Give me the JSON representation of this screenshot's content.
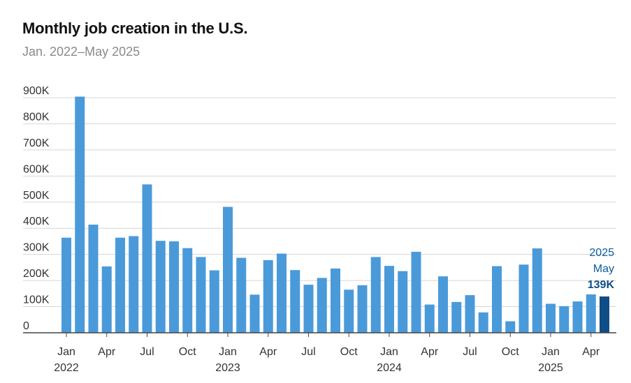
{
  "title": "Monthly job creation in the U.S.",
  "subtitle": "Jan. 2022–May 2025",
  "colors": {
    "bar": "#4a9ada",
    "highlight": "#0e4d86",
    "grid": "#d6d6d6",
    "axis": "#444444"
  },
  "chart_data": {
    "type": "bar",
    "title": "Monthly job creation in the U.S.",
    "subtitle": "Jan. 2022–May 2025",
    "xlabel": "",
    "ylabel": "",
    "ylim": [
      0,
      900000
    ],
    "grid": true,
    "y_ticks": [
      0,
      100000,
      200000,
      300000,
      400000,
      500000,
      600000,
      700000,
      800000,
      900000
    ],
    "y_tick_labels": [
      "0",
      "100K",
      "200K",
      "300K",
      "400K",
      "500K",
      "600K",
      "700K",
      "800K",
      "900K"
    ],
    "categories": [
      "Jan 2022",
      "Feb 2022",
      "Mar 2022",
      "Apr 2022",
      "May 2022",
      "Jun 2022",
      "Jul 2022",
      "Aug 2022",
      "Sep 2022",
      "Oct 2022",
      "Nov 2022",
      "Dec 2022",
      "Jan 2023",
      "Feb 2023",
      "Mar 2023",
      "Apr 2023",
      "May 2023",
      "Jun 2023",
      "Jul 2023",
      "Aug 2023",
      "Sep 2023",
      "Oct 2023",
      "Nov 2023",
      "Dec 2023",
      "Jan 2024",
      "Feb 2024",
      "Mar 2024",
      "Apr 2024",
      "May 2024",
      "Jun 2024",
      "Jul 2024",
      "Aug 2024",
      "Sep 2024",
      "Oct 2024",
      "Nov 2024",
      "Dec 2024",
      "Jan 2025",
      "Feb 2025",
      "Mar 2025",
      "Apr 2025",
      "May 2025"
    ],
    "values": [
      364000,
      904000,
      414000,
      254000,
      364000,
      370000,
      568000,
      352000,
      350000,
      324000,
      290000,
      239000,
      482000,
      287000,
      146000,
      278000,
      303000,
      240000,
      184000,
      210000,
      246000,
      165000,
      182000,
      290000,
      256000,
      236000,
      310000,
      108000,
      216000,
      118000,
      144000,
      78000,
      255000,
      44000,
      261000,
      323000,
      111000,
      102000,
      120000,
      147000,
      139000
    ],
    "highlight_index": 40,
    "x_tick_labels": [
      {
        "index": 0,
        "month": "Jan",
        "year": "2022"
      },
      {
        "index": 3,
        "month": "Apr",
        "year": ""
      },
      {
        "index": 6,
        "month": "Jul",
        "year": ""
      },
      {
        "index": 9,
        "month": "Oct",
        "year": ""
      },
      {
        "index": 12,
        "month": "Jan",
        "year": "2023"
      },
      {
        "index": 15,
        "month": "Apr",
        "year": ""
      },
      {
        "index": 18,
        "month": "Jul",
        "year": ""
      },
      {
        "index": 21,
        "month": "Oct",
        "year": ""
      },
      {
        "index": 24,
        "month": "Jan",
        "year": "2024"
      },
      {
        "index": 27,
        "month": "Apr",
        "year": ""
      },
      {
        "index": 30,
        "month": "Jul",
        "year": ""
      },
      {
        "index": 33,
        "month": "Oct",
        "year": ""
      },
      {
        "index": 36,
        "month": "Jan",
        "year": "2025"
      },
      {
        "index": 39,
        "month": "Apr",
        "year": ""
      }
    ],
    "annotation": {
      "year": "2025",
      "month": "May",
      "value_label": "139K"
    }
  }
}
